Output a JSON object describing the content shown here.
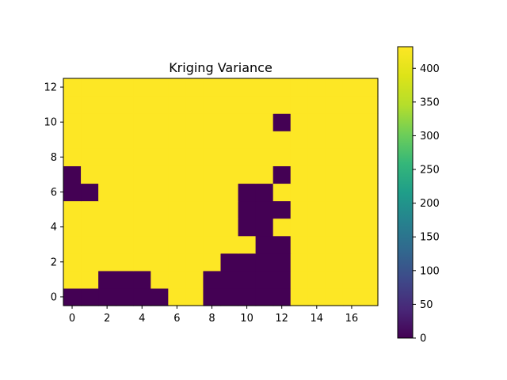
{
  "chart_data": {
    "type": "heatmap",
    "title": "Kriging Variance",
    "xlabel": "",
    "ylabel": "",
    "nx": 18,
    "ny": 13,
    "x_ticks": [
      0,
      2,
      4,
      6,
      8,
      10,
      12,
      14,
      16
    ],
    "y_ticks": [
      0,
      2,
      4,
      6,
      8,
      10,
      12
    ],
    "colormap": "viridis",
    "vmin": 0,
    "vmax": 432,
    "colorbar_ticks": [
      0,
      50,
      100,
      150,
      200,
      250,
      300,
      350,
      400
    ],
    "low_value": 0,
    "high_value": 432,
    "low_value_cells": [
      {
        "row": 0,
        "cols": [
          0,
          1,
          2,
          3,
          4,
          5,
          8,
          9,
          10,
          11,
          12
        ]
      },
      {
        "row": 1,
        "cols": [
          2,
          3,
          4,
          8,
          9,
          10,
          11,
          12
        ]
      },
      {
        "row": 2,
        "cols": [
          9,
          10,
          11,
          12
        ]
      },
      {
        "row": 3,
        "cols": [
          11,
          12
        ]
      },
      {
        "row": 4,
        "cols": [
          10,
          11
        ]
      },
      {
        "row": 5,
        "cols": [
          10,
          11,
          12
        ]
      },
      {
        "row": 6,
        "cols": [
          0,
          1,
          10,
          11
        ]
      },
      {
        "row": 7,
        "cols": [
          0,
          12
        ]
      },
      {
        "row": 10,
        "cols": [
          12
        ]
      }
    ]
  }
}
